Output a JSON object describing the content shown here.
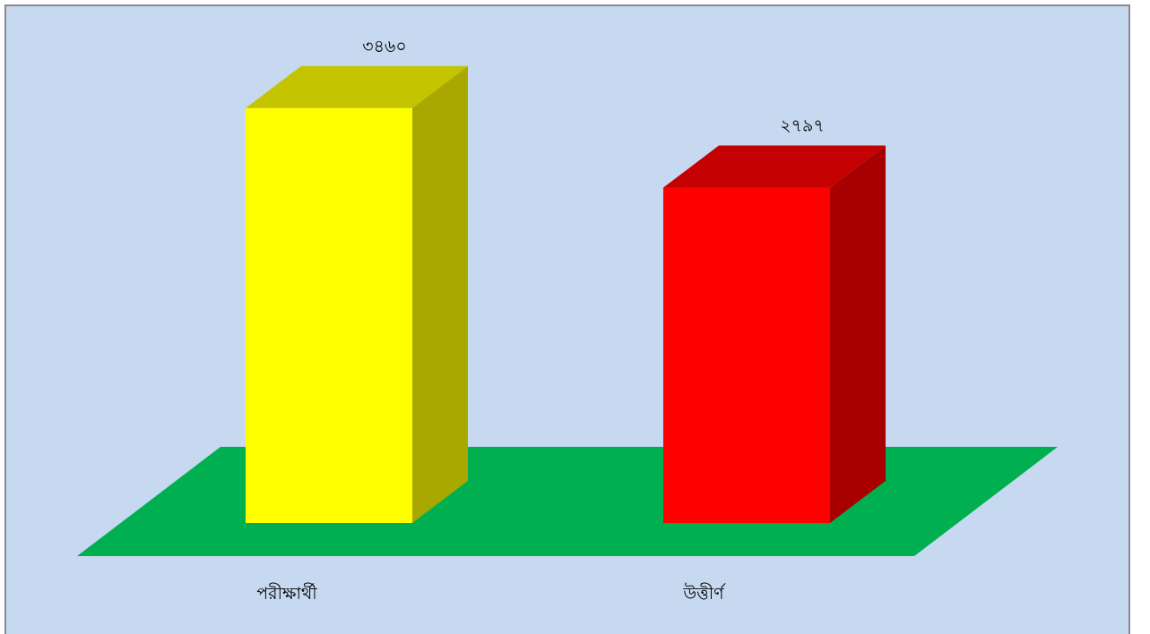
{
  "chart_data": {
    "type": "bar",
    "style": "3d-column",
    "categories": [
      "পরীক্ষার্থী",
      "উত্তীর্ণ"
    ],
    "values": [
      3460,
      2797
    ],
    "value_labels": [
      "৩৪৬০",
      "২৭৯৭"
    ],
    "bar_colors": [
      "#ffff00",
      "#ff0000"
    ],
    "floor_color": "#00b050",
    "background_color": "#c6d9f0",
    "title": "",
    "xlabel": "",
    "ylabel": "",
    "ylim": [
      0,
      3660
    ],
    "grid": false,
    "legend": "none"
  }
}
